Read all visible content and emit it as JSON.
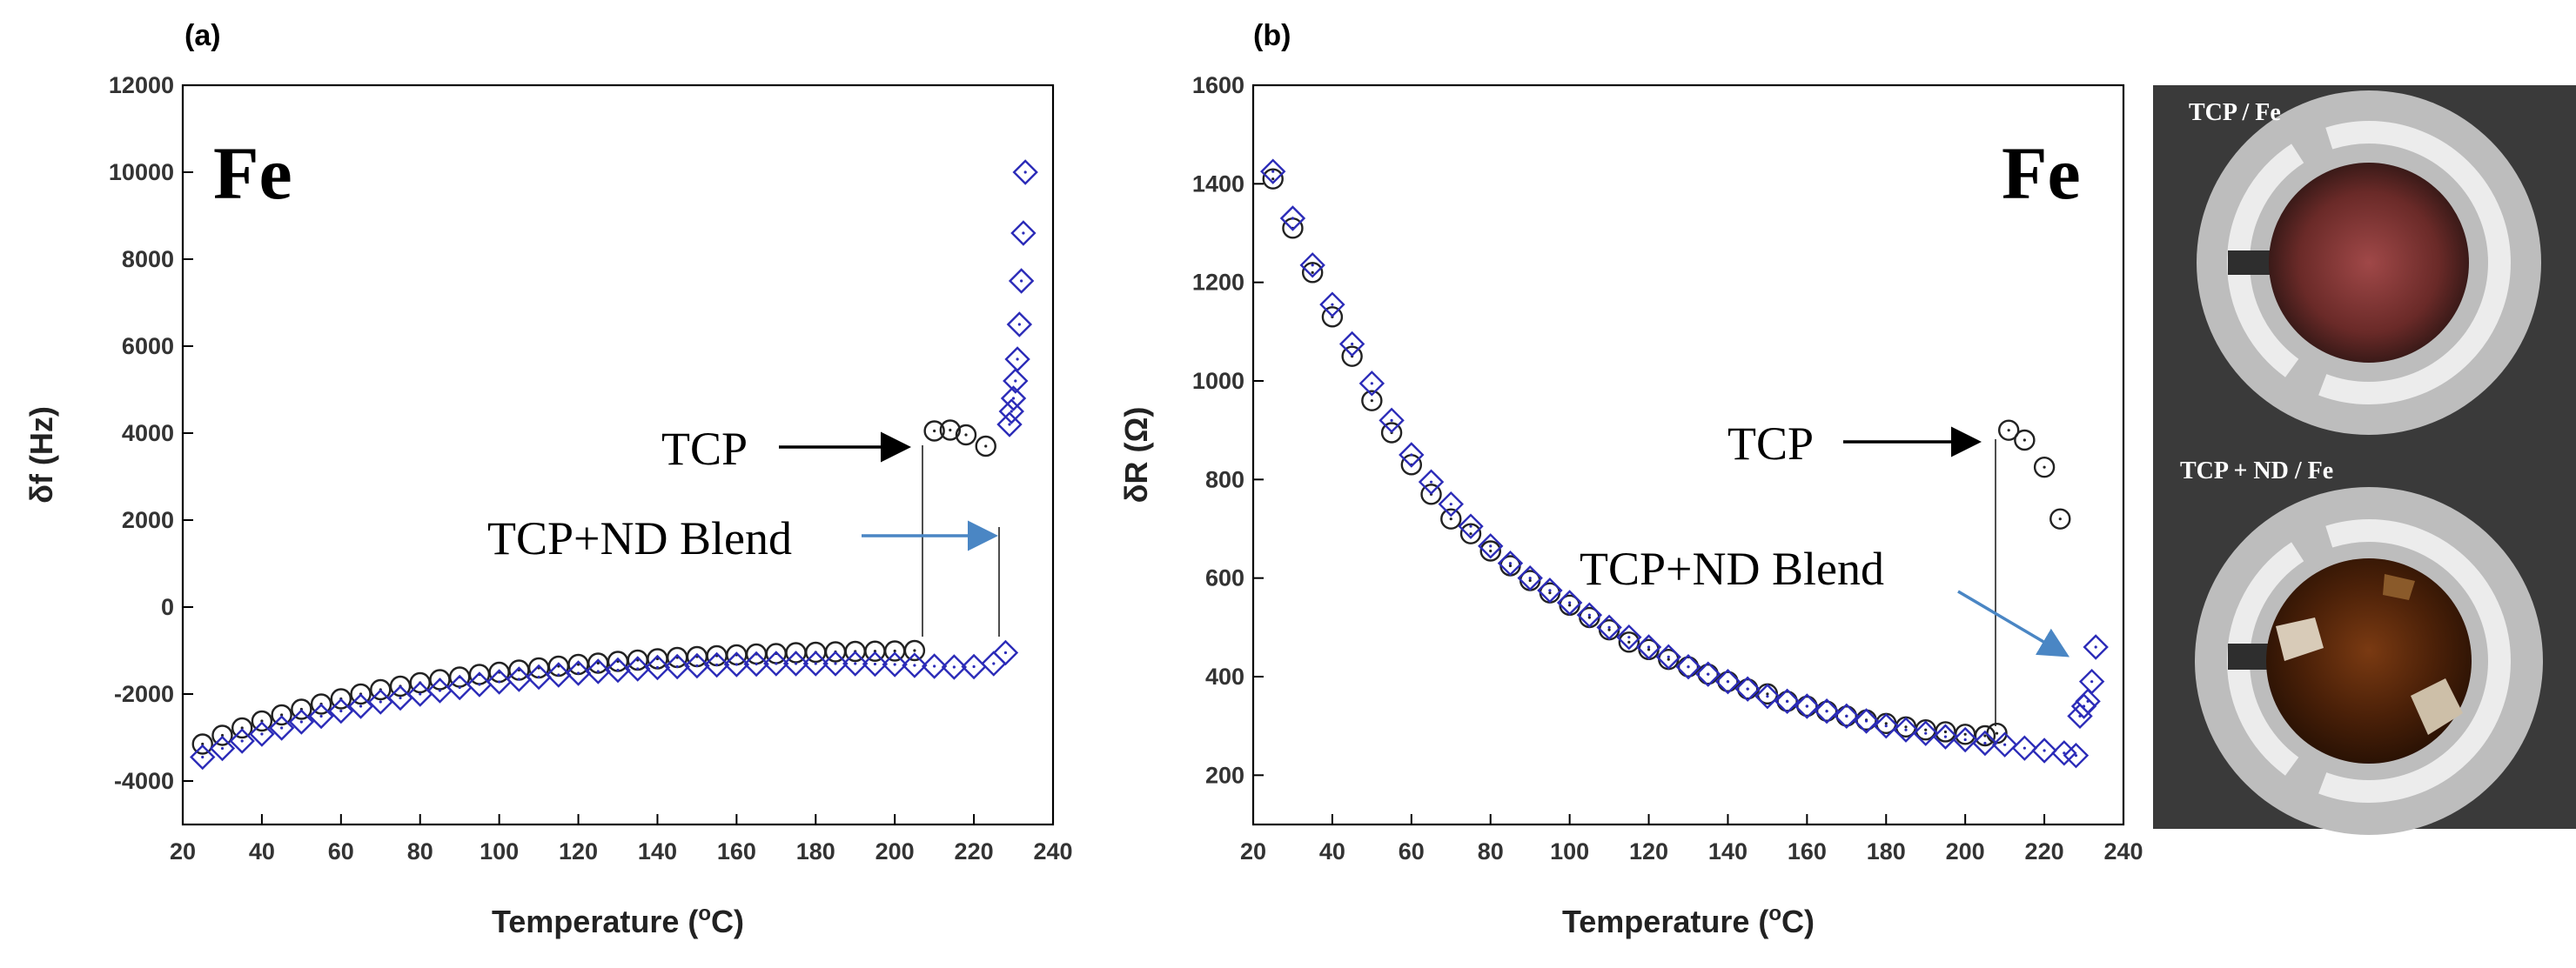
{
  "figure": {
    "panel_a_label": "(a)",
    "panel_b_label": "(b)",
    "photo_top_caption": "TCP / Fe",
    "photo_bottom_caption": "TCP + ND / Fe",
    "colors": {
      "tcp": "#222222",
      "blend": "#2b2bb8",
      "blend_arrow": "#4a86c4"
    }
  },
  "chart_data": [
    {
      "type": "scatter",
      "panel": "a",
      "label": "Fe",
      "xlabel": "Temperature (°C)",
      "xlabel_main": "Temperature (",
      "xlabel_sup": "o",
      "xlabel_tail": "C)",
      "ylabel": "δf (Hz)",
      "xlim": [
        20,
        240
      ],
      "ylim": [
        -5000,
        12000
      ],
      "xticks": [
        20,
        40,
        60,
        80,
        100,
        120,
        140,
        160,
        180,
        200,
        220,
        240
      ],
      "yticks": [
        -4000,
        -2000,
        0,
        2000,
        4000,
        6000,
        8000,
        10000,
        12000
      ],
      "annotations": {
        "tcp": "TCP",
        "blend": "TCP+ND Blend"
      },
      "series": [
        {
          "name": "TCP",
          "marker": "circle",
          "x": [
            25,
            30,
            35,
            40,
            45,
            50,
            55,
            60,
            65,
            70,
            75,
            80,
            85,
            90,
            95,
            100,
            105,
            110,
            115,
            120,
            125,
            130,
            135,
            140,
            145,
            150,
            155,
            160,
            165,
            170,
            175,
            180,
            185,
            190,
            195,
            200,
            205,
            210,
            214,
            218,
            223
          ],
          "y": [
            -3150,
            -2950,
            -2780,
            -2620,
            -2480,
            -2350,
            -2230,
            -2110,
            -2000,
            -1900,
            -1820,
            -1740,
            -1670,
            -1610,
            -1550,
            -1500,
            -1450,
            -1400,
            -1360,
            -1320,
            -1290,
            -1250,
            -1220,
            -1190,
            -1160,
            -1140,
            -1120,
            -1100,
            -1080,
            -1070,
            -1050,
            -1040,
            -1030,
            -1020,
            -1015,
            -1010,
            -1000,
            4050,
            4070,
            3960,
            3700
          ]
        },
        {
          "name": "TCP+ND Blend",
          "marker": "diamond",
          "x": [
            25,
            30,
            35,
            40,
            45,
            50,
            55,
            60,
            65,
            70,
            75,
            80,
            85,
            90,
            95,
            100,
            105,
            110,
            115,
            120,
            125,
            130,
            135,
            140,
            145,
            150,
            155,
            160,
            165,
            170,
            175,
            180,
            185,
            190,
            195,
            200,
            205,
            210,
            215,
            220,
            225,
            228,
            229,
            229.5,
            230,
            230.5,
            231,
            231.5,
            232,
            232.5,
            233
          ],
          "y": [
            -3450,
            -3250,
            -3080,
            -2920,
            -2780,
            -2640,
            -2510,
            -2390,
            -2280,
            -2180,
            -2090,
            -2000,
            -1920,
            -1850,
            -1780,
            -1720,
            -1660,
            -1610,
            -1560,
            -1520,
            -1480,
            -1450,
            -1420,
            -1390,
            -1370,
            -1350,
            -1330,
            -1320,
            -1310,
            -1300,
            -1300,
            -1300,
            -1300,
            -1300,
            -1310,
            -1320,
            -1340,
            -1360,
            -1380,
            -1370,
            -1300,
            -1050,
            4200,
            4500,
            4800,
            5200,
            5700,
            6500,
            7500,
            8600,
            10000
          ]
        }
      ]
    },
    {
      "type": "scatter",
      "panel": "b",
      "label": "Fe",
      "xlabel": "Temperature (°C)",
      "xlabel_main": "Temperature (",
      "xlabel_sup": "o",
      "xlabel_tail": "C)",
      "ylabel": "δR (Ω)",
      "xlim": [
        20,
        240
      ],
      "ylim": [
        100,
        1600
      ],
      "xticks": [
        20,
        40,
        60,
        80,
        100,
        120,
        140,
        160,
        180,
        200,
        220,
        240
      ],
      "yticks": [
        200,
        400,
        600,
        800,
        1000,
        1200,
        1400,
        1600
      ],
      "annotations": {
        "tcp": "TCP",
        "blend": "TCP+ND Blend"
      },
      "series": [
        {
          "name": "TCP",
          "marker": "circle",
          "x": [
            25,
            30,
            35,
            40,
            45,
            50,
            55,
            60,
            65,
            70,
            75,
            80,
            85,
            90,
            95,
            100,
            105,
            110,
            115,
            120,
            125,
            130,
            135,
            140,
            145,
            150,
            155,
            160,
            165,
            170,
            175,
            180,
            185,
            190,
            195,
            200,
            205,
            208,
            211,
            215,
            220,
            224
          ],
          "y": [
            1410,
            1310,
            1220,
            1130,
            1050,
            960,
            895,
            830,
            770,
            720,
            690,
            655,
            625,
            595,
            570,
            545,
            520,
            495,
            470,
            455,
            435,
            420,
            405,
            390,
            375,
            365,
            350,
            340,
            330,
            320,
            312,
            305,
            298,
            292,
            288,
            283,
            280,
            285,
            900,
            880,
            825,
            720
          ]
        },
        {
          "name": "TCP+ND Blend",
          "marker": "diamond",
          "x": [
            25,
            30,
            35,
            40,
            45,
            50,
            55,
            60,
            65,
            70,
            75,
            80,
            85,
            90,
            95,
            100,
            105,
            110,
            115,
            120,
            125,
            130,
            135,
            140,
            145,
            150,
            155,
            160,
            165,
            170,
            175,
            180,
            185,
            190,
            195,
            200,
            205,
            210,
            215,
            220,
            225,
            228,
            229,
            230,
            231,
            232,
            233
          ],
          "y": [
            1425,
            1330,
            1235,
            1155,
            1075,
            995,
            920,
            850,
            795,
            750,
            705,
            665,
            630,
            600,
            575,
            550,
            525,
            500,
            480,
            460,
            440,
            420,
            405,
            390,
            375,
            360,
            350,
            340,
            330,
            320,
            310,
            300,
            292,
            285,
            278,
            272,
            265,
            262,
            255,
            250,
            245,
            240,
            320,
            340,
            350,
            390,
            460
          ]
        }
      ]
    }
  ]
}
